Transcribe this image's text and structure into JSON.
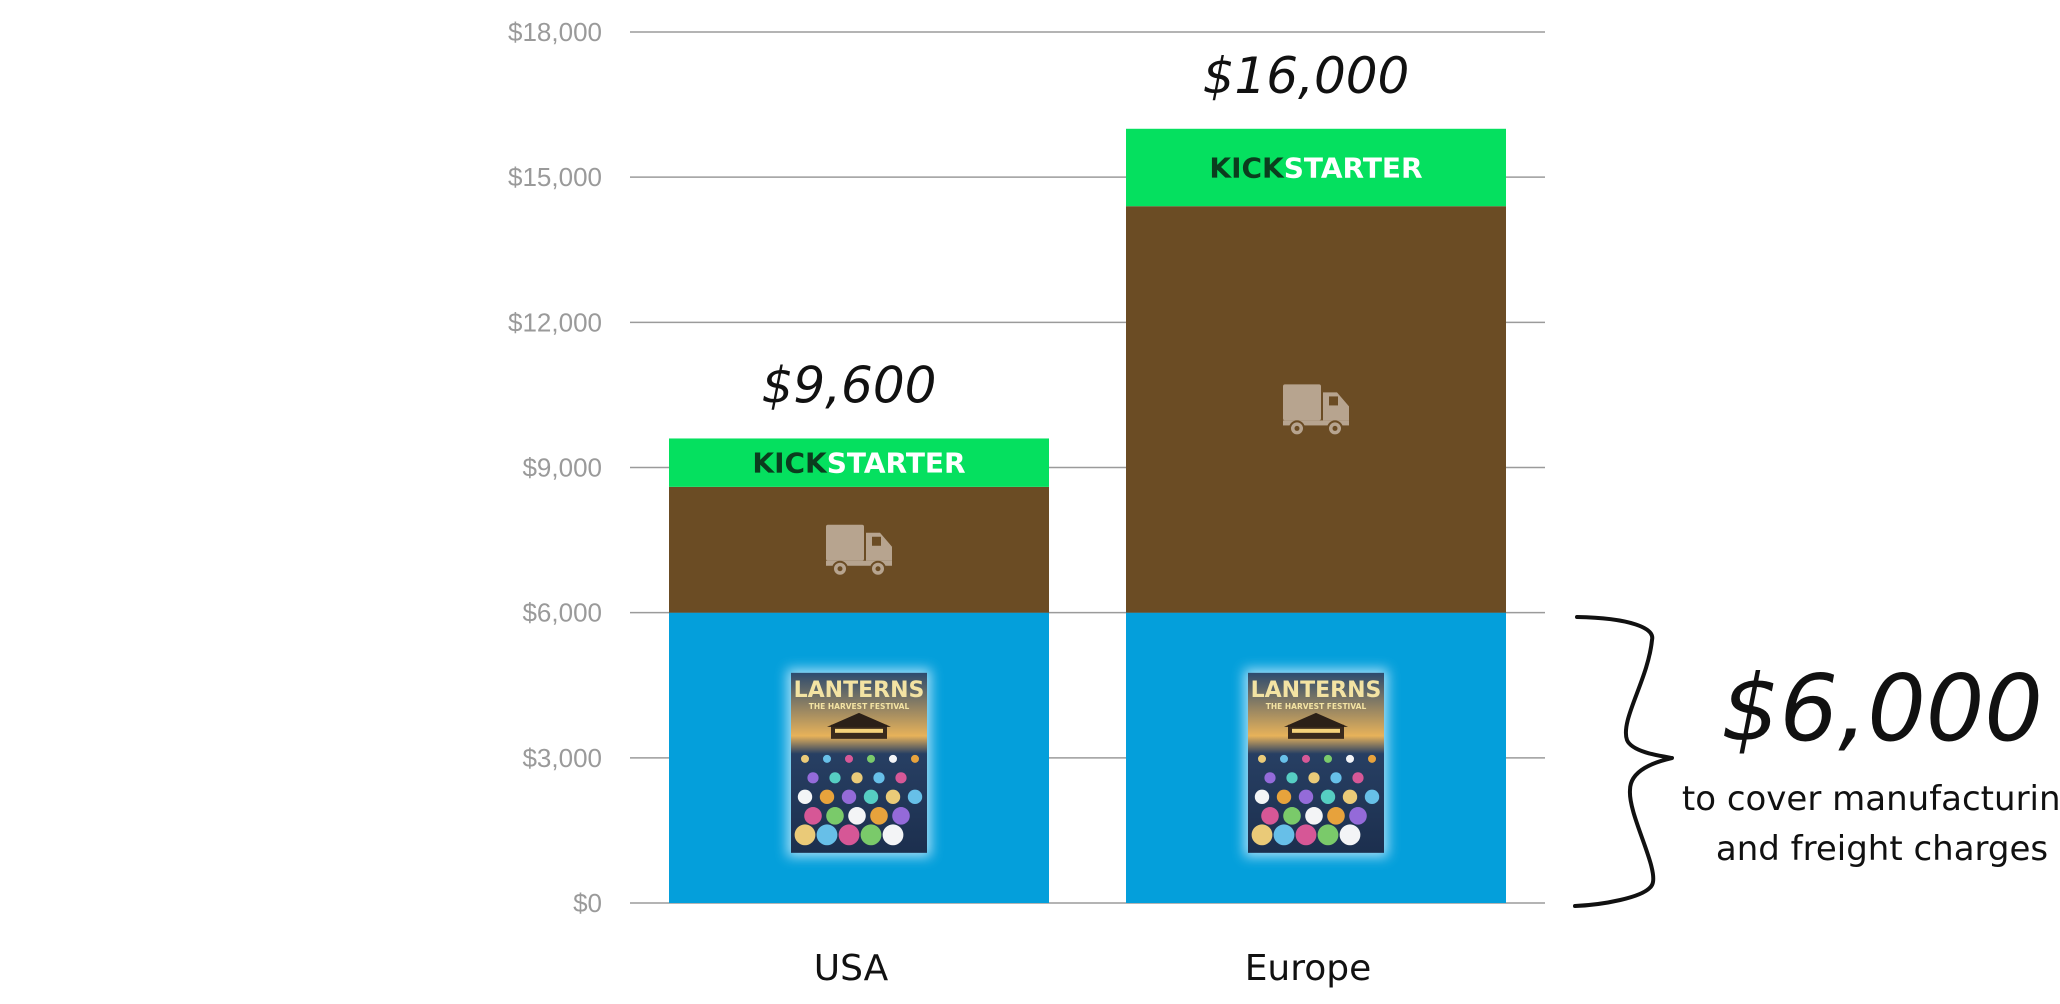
{
  "chart_data": {
    "type": "bar",
    "stacked": true,
    "categories": [
      "USA",
      "Europe"
    ],
    "ylim": [
      0,
      18000
    ],
    "yticks": [
      0,
      3000,
      6000,
      9000,
      12000,
      15000,
      18000
    ],
    "ytick_labels": [
      "$0",
      "$3,000",
      "$6,000",
      "$9,000",
      "$12,000",
      "$15,000",
      "$18,000"
    ],
    "grid": true,
    "series": [
      {
        "values": [
          6000,
          6000
        ],
        "color": "#049fdb",
        "icon": "game-box-icon"
      },
      {
        "values": [
          2600,
          8400
        ],
        "color": "#6b4c24",
        "icon": "truck-icon"
      },
      {
        "values": [
          1000,
          1600
        ],
        "color": "#05e05f",
        "icon": "kickstarter-logo"
      }
    ],
    "totals": [
      "$9,600",
      "$16,000"
    ],
    "annotation": {
      "amount": "$6,000",
      "line1": "to cover manufacturing",
      "line2": "and freight charges"
    }
  },
  "logo": {
    "kick": "KICK",
    "starter": "STARTER"
  },
  "box_art": {
    "title": "LANTERNS",
    "subtitle": "THE HARVEST FESTIVAL"
  },
  "colors": {
    "game": "#049fdb",
    "freight": "#6b4c24",
    "kickstarter": "#05e05f",
    "grid": "#9b9b9b",
    "truck": "#b7a48f"
  }
}
